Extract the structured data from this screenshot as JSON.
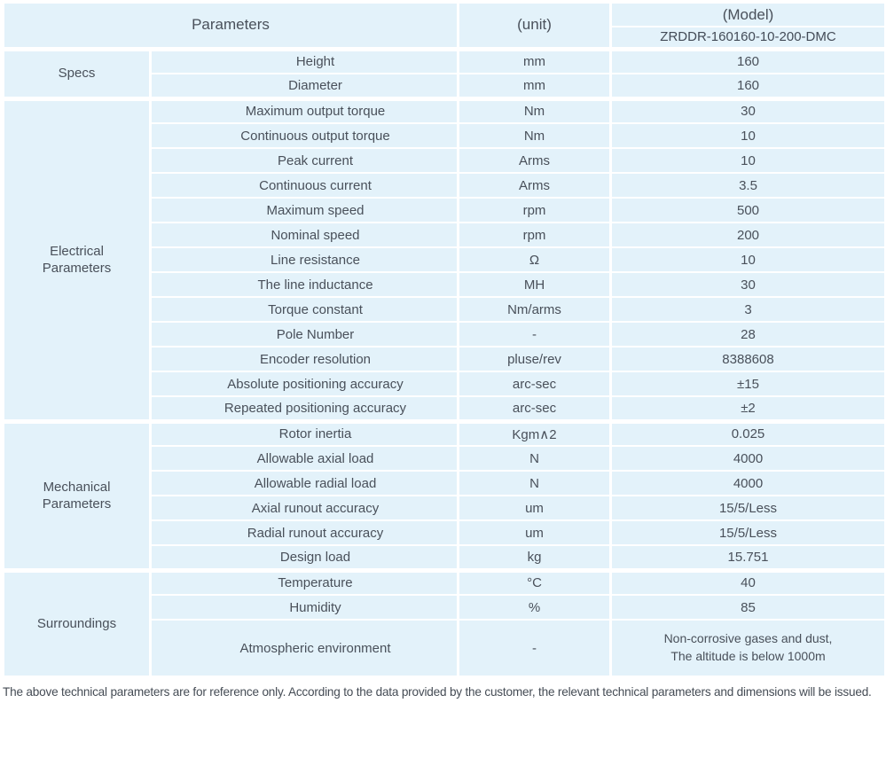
{
  "colors": {
    "header_bg": "#cad4ec",
    "cell_bg": "#e3f2fa",
    "divider": "#ffffff",
    "text": "#49505a"
  },
  "header": {
    "parameters_label": "Parameters",
    "unit_label": "(unit)",
    "model_label": "(Model)",
    "model_value": "ZRDDR-160160-10-200-DMC"
  },
  "sections": [
    {
      "label": "Specs",
      "rows": [
        {
          "parameter": "Height",
          "unit": "mm",
          "value": "160"
        },
        {
          "parameter": "Diameter",
          "unit": "mm",
          "value": "160"
        }
      ]
    },
    {
      "label": "Electrical Parameters",
      "rows": [
        {
          "parameter": "Maximum output torque",
          "unit": "Nm",
          "value": "30"
        },
        {
          "parameter": "Continuous output torque",
          "unit": "Nm",
          "value": "10"
        },
        {
          "parameter": "Peak current",
          "unit": "Arms",
          "value": "10"
        },
        {
          "parameter": "Continuous current",
          "unit": "Arms",
          "value": "3.5"
        },
        {
          "parameter": "Maximum speed",
          "unit": "rpm",
          "value": "500"
        },
        {
          "parameter": "Nominal speed",
          "unit": "rpm",
          "value": "200"
        },
        {
          "parameter": "Line resistance",
          "unit": "Ω",
          "value": "10"
        },
        {
          "parameter": "The line inductance",
          "unit": "MH",
          "value": "30"
        },
        {
          "parameter": "Torque constant",
          "unit": "Nm/arms",
          "value": "3"
        },
        {
          "parameter": "Pole Number",
          "unit": "-",
          "value": "28"
        },
        {
          "parameter": "Encoder resolution",
          "unit": "pluse/rev",
          "value": "8388608"
        },
        {
          "parameter": "Absolute positioning accuracy",
          "unit": "arc-sec",
          "value": "±15"
        },
        {
          "parameter": "Repeated positioning accuracy",
          "unit": "arc-sec",
          "value": "±2"
        }
      ]
    },
    {
      "label": "Mechanical Parameters",
      "rows": [
        {
          "parameter": "Rotor inertia",
          "unit": "Kgm∧2",
          "value": "0.025"
        },
        {
          "parameter": "Allowable axial load",
          "unit": "N",
          "value": "4000"
        },
        {
          "parameter": "Allowable radial load",
          "unit": "N",
          "value": "4000"
        },
        {
          "parameter": "Axial runout accuracy",
          "unit": "um",
          "value": "15/5/Less"
        },
        {
          "parameter": "Radial runout accuracy",
          "unit": "um",
          "value": "15/5/Less"
        },
        {
          "parameter": "Design load",
          "unit": "kg",
          "value": "15.751"
        }
      ]
    },
    {
      "label": "Surroundings",
      "rows": [
        {
          "parameter": "Temperature",
          "unit": "°C",
          "value": "40"
        },
        {
          "parameter": "Humidity",
          "unit": "%",
          "value": "85"
        },
        {
          "parameter": "Atmospheric environment",
          "unit": "-",
          "value": "Non-corrosive gases and dust,\nThe altitude is below 1000m",
          "tall": true
        }
      ]
    }
  ],
  "footer": {
    "note": "The above technical parameters are for reference only. According to the data provided by the customer, the relevant technical parameters and dimensions will be issued."
  }
}
